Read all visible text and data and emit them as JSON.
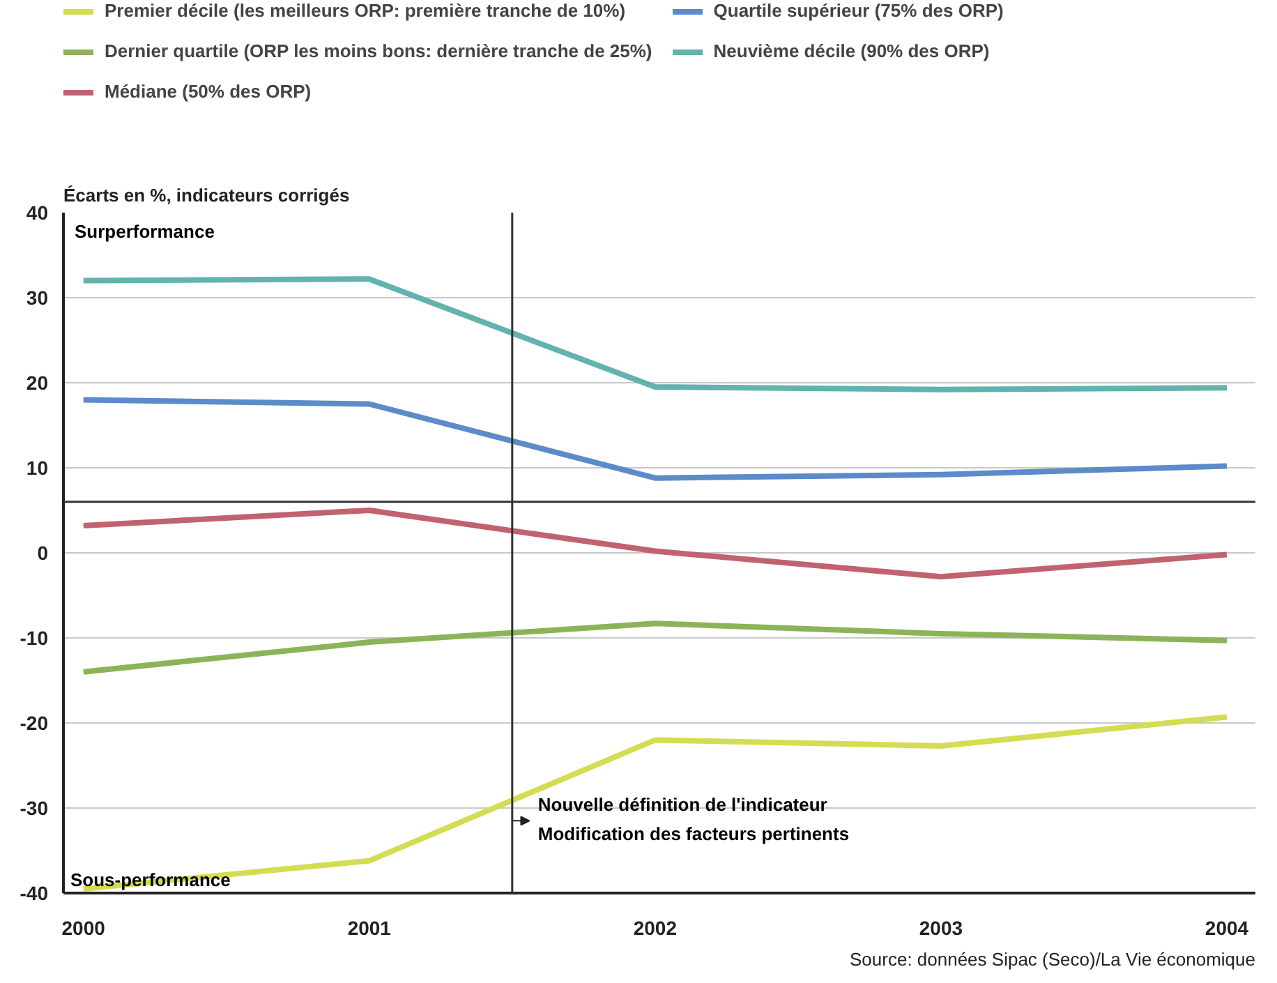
{
  "chart_data": {
    "type": "line",
    "ylabel": "Écarts en %, indicateurs corrigés",
    "x": [
      2000,
      2001,
      2002,
      2003,
      2004
    ],
    "series": [
      {
        "name": "Premier décile (les meilleurs ORP: première tranche de 10%)",
        "color": "#d4dc52",
        "values": [
          -39.5,
          -36.2,
          -22,
          -22.7,
          -19.3
        ]
      },
      {
        "name": "Dernier quartile (ORP les moins bons: dernière tranche de 25%)",
        "color": "#8db35a",
        "values": [
          -14,
          -10.5,
          -8.3,
          -9.5,
          -10.3
        ]
      },
      {
        "name": "Médiane (50% des ORP)",
        "color": "#c0636e",
        "values": [
          3.2,
          5,
          0.2,
          -2.8,
          -0.2
        ]
      },
      {
        "name": "Quartile supérieur (75% des ORP)",
        "color": "#5b8bc9",
        "values": [
          18,
          17.5,
          8.8,
          9.2,
          10.2
        ]
      },
      {
        "name": "Neuvième décile (90% des ORP)",
        "color": "#62b2ae",
        "values": [
          32,
          32.2,
          19.5,
          19.2,
          19.4
        ]
      }
    ],
    "xlim": [
      1999.93,
      2004.1
    ],
    "ylim": [
      -40,
      40
    ],
    "xticks": [
      2000,
      2001,
      2002,
      2003,
      2004
    ],
    "yticks": [
      -40,
      -30,
      -20,
      -10,
      0,
      10,
      20,
      30,
      40
    ],
    "ref_lines": [
      {
        "axis": "y",
        "value": 6,
        "label": null,
        "color": "#333333"
      },
      {
        "axis": "x",
        "value": 2001.5,
        "label": "Nouvelle définition de l'indicateur\nModification des facteurs pertinents",
        "color": "#333333"
      }
    ],
    "annotations": [
      "Surperformance",
      "Sous-performance",
      "Source: données Sipac (Seco)/La Vie économique"
    ],
    "grid": "y",
    "legend": "top",
    "marker": "none",
    "line_style": "solid"
  }
}
